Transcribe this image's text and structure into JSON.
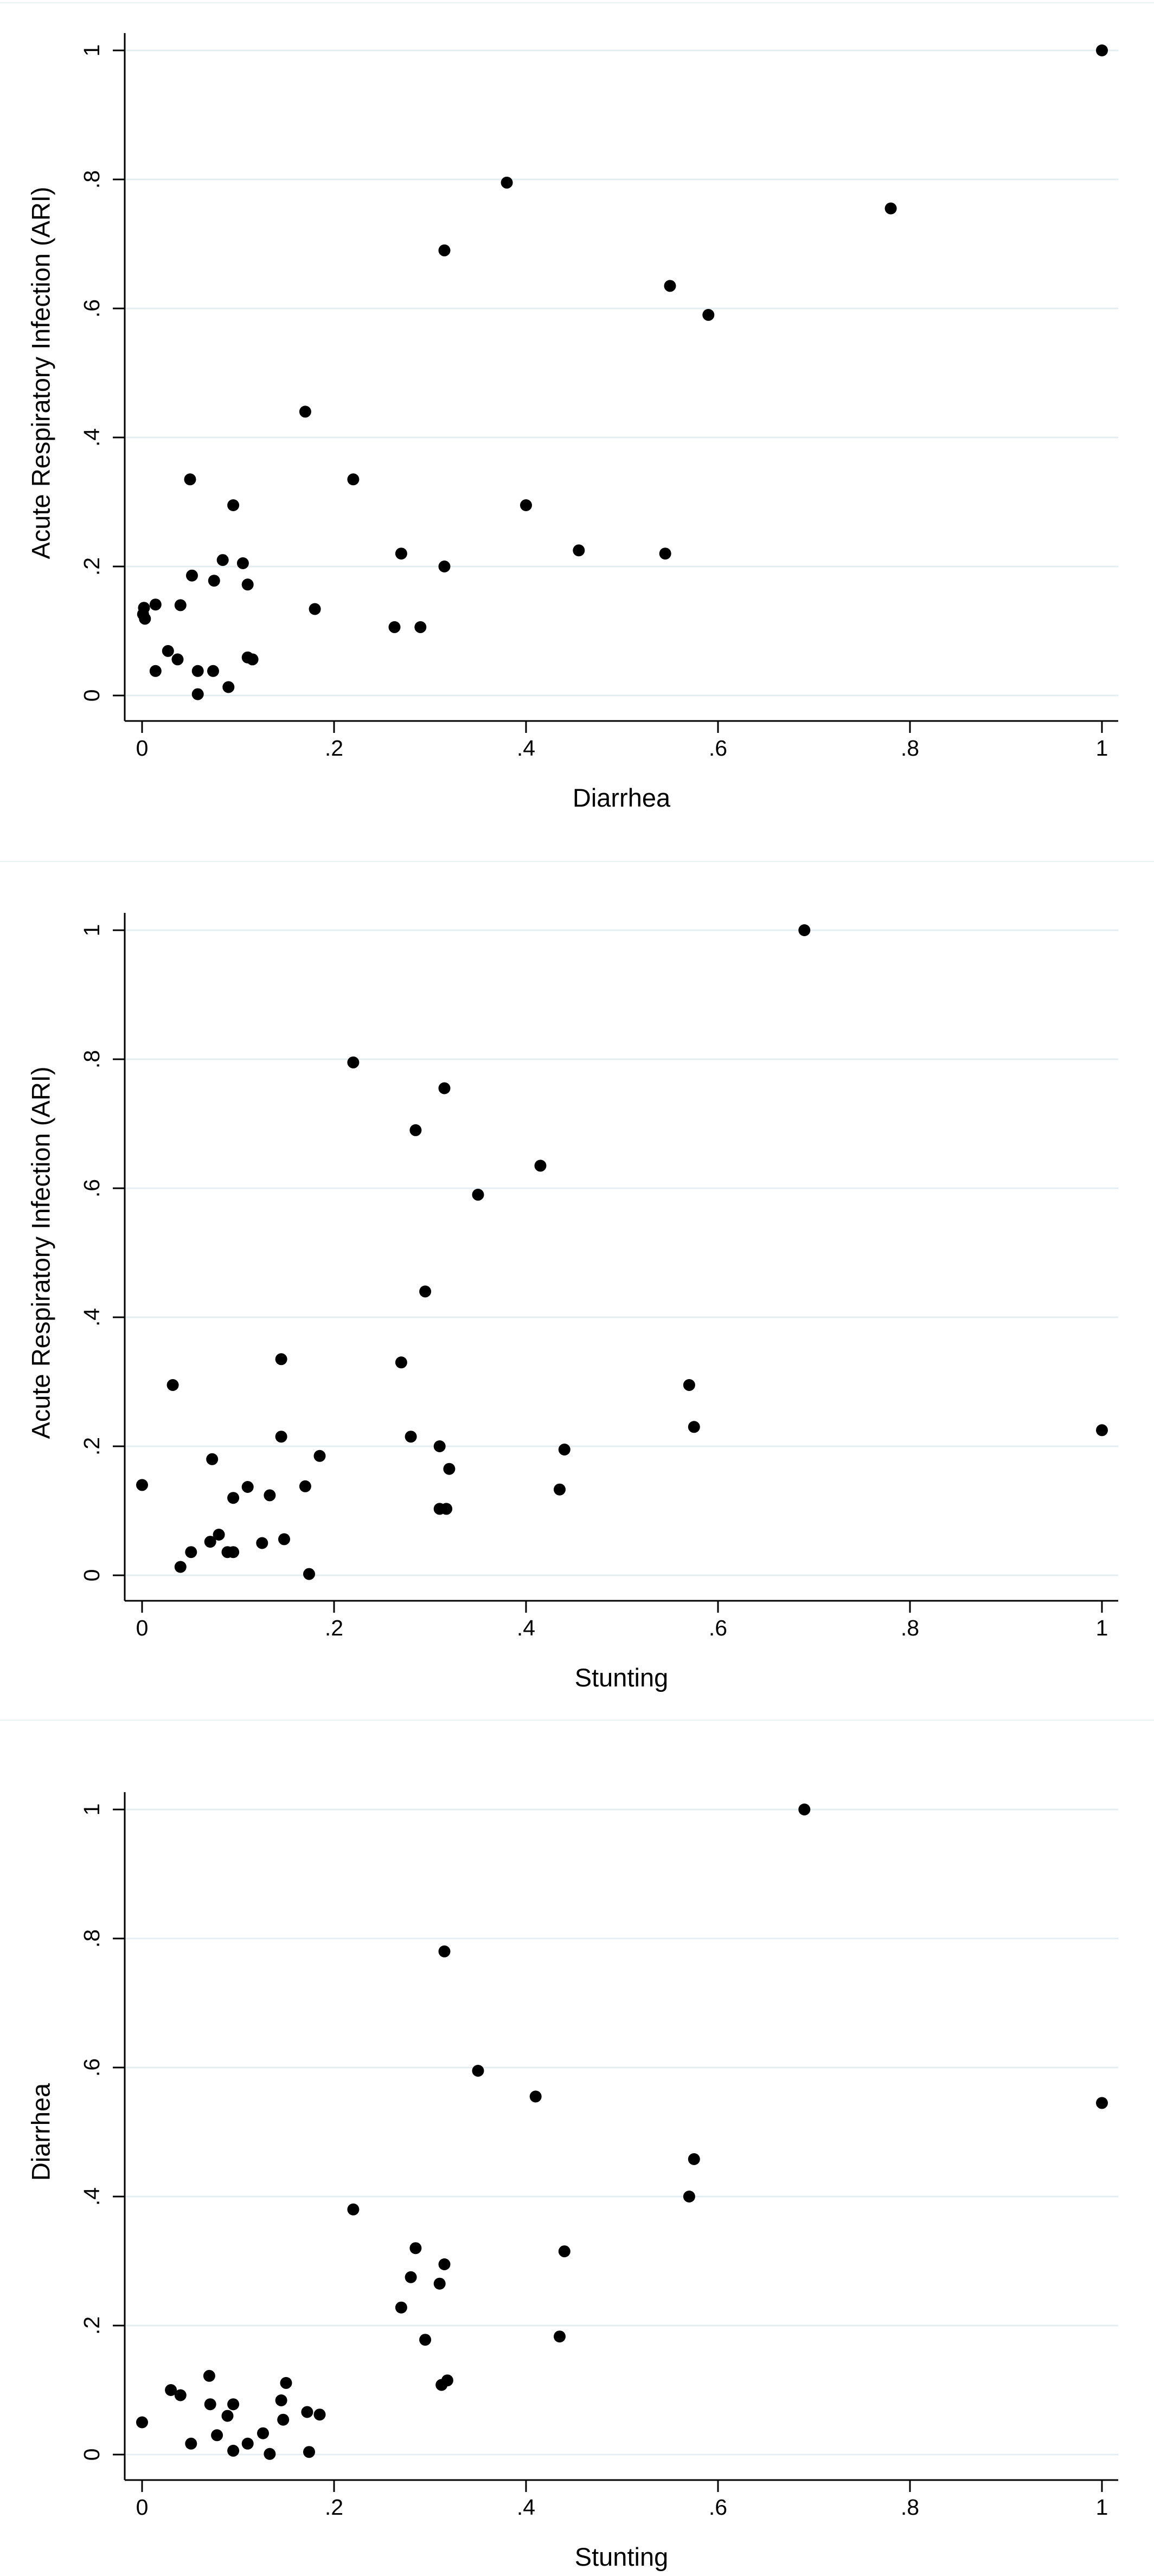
{
  "page": {
    "background": "#ffffff",
    "description": "Three stacked scatter plots of pairwise relationships between child health indicators"
  },
  "colors": {
    "background": "#ffffff",
    "axis": "#000000",
    "tick_label": "#000000",
    "title": "#000000",
    "gridline": "#e4edf0",
    "panel_top_border": "#edf3f5",
    "marker": "#000000"
  },
  "chart_data": [
    {
      "type": "scatter",
      "title": "",
      "xlabel": "Diarrhea",
      "ylabel": "Acute Respiratory Infection (ARI)",
      "xlim": [
        0,
        1
      ],
      "ylim": [
        0,
        1
      ],
      "xticks": [
        0,
        0.2,
        0.4,
        0.6,
        0.8,
        1
      ],
      "yticks": [
        0,
        0.2,
        0.4,
        0.6,
        0.8,
        1
      ],
      "xtick_labels": [
        "0",
        ".2",
        ".4",
        ".6",
        ".8",
        "1"
      ],
      "ytick_labels": [
        "0",
        ".2",
        ".4",
        ".6",
        ".8",
        "1"
      ],
      "grid": "horizontal-only",
      "legend_position": "none",
      "marker": {
        "shape": "circle",
        "color": "#000000"
      },
      "points": [
        [
          1.0,
          1.0
        ],
        [
          0.78,
          0.755
        ],
        [
          0.38,
          0.795
        ],
        [
          0.315,
          0.69
        ],
        [
          0.55,
          0.635
        ],
        [
          0.59,
          0.59
        ],
        [
          0.17,
          0.44
        ],
        [
          0.05,
          0.335
        ],
        [
          0.22,
          0.335
        ],
        [
          0.095,
          0.295
        ],
        [
          0.4,
          0.295
        ],
        [
          0.455,
          0.225
        ],
        [
          0.545,
          0.22
        ],
        [
          0.27,
          0.22
        ],
        [
          0.084,
          0.21
        ],
        [
          0.105,
          0.205
        ],
        [
          0.315,
          0.2
        ],
        [
          0.052,
          0.186
        ],
        [
          0.075,
          0.178
        ],
        [
          0.11,
          0.172
        ],
        [
          0.014,
          0.141
        ],
        [
          0.002,
          0.136
        ],
        [
          0.04,
          0.14
        ],
        [
          0.001,
          0.126
        ],
        [
          0.003,
          0.119
        ],
        [
          0.18,
          0.134
        ],
        [
          0.263,
          0.106
        ],
        [
          0.29,
          0.106
        ],
        [
          0.027,
          0.069
        ],
        [
          0.037,
          0.056
        ],
        [
          0.11,
          0.059
        ],
        [
          0.115,
          0.056
        ],
        [
          0.014,
          0.038
        ],
        [
          0.058,
          0.038
        ],
        [
          0.074,
          0.038
        ],
        [
          0.09,
          0.013
        ],
        [
          0.058,
          0.002
        ]
      ]
    },
    {
      "type": "scatter",
      "title": "",
      "xlabel": "Stunting",
      "ylabel": "Acute Respiratory Infection (ARI)",
      "xlim": [
        0,
        1
      ],
      "ylim": [
        0,
        1
      ],
      "xticks": [
        0,
        0.2,
        0.4,
        0.6,
        0.8,
        1
      ],
      "yticks": [
        0,
        0.2,
        0.4,
        0.6,
        0.8,
        1
      ],
      "xtick_labels": [
        "0",
        ".2",
        ".4",
        ".6",
        ".8",
        "1"
      ],
      "ytick_labels": [
        "0",
        ".2",
        ".4",
        ".6",
        ".8",
        "1"
      ],
      "grid": "horizontal-only",
      "legend_position": "none",
      "marker": {
        "shape": "circle",
        "color": "#000000"
      },
      "points": [
        [
          0.69,
          1.0
        ],
        [
          0.22,
          0.795
        ],
        [
          0.315,
          0.755
        ],
        [
          0.285,
          0.69
        ],
        [
          0.415,
          0.635
        ],
        [
          0.35,
          0.59
        ],
        [
          0.295,
          0.44
        ],
        [
          0.145,
          0.335
        ],
        [
          0.27,
          0.33
        ],
        [
          0.032,
          0.295
        ],
        [
          0.57,
          0.295
        ],
        [
          0.575,
          0.23
        ],
        [
          1.0,
          0.225
        ],
        [
          0.28,
          0.215
        ],
        [
          0.145,
          0.215
        ],
        [
          0.31,
          0.2
        ],
        [
          0.44,
          0.195
        ],
        [
          0.185,
          0.185
        ],
        [
          0.073,
          0.18
        ],
        [
          0.32,
          0.165
        ],
        [
          0.0,
          0.14
        ],
        [
          0.17,
          0.138
        ],
        [
          0.11,
          0.137
        ],
        [
          0.435,
          0.133
        ],
        [
          0.133,
          0.124
        ],
        [
          0.095,
          0.12
        ],
        [
          0.31,
          0.103
        ],
        [
          0.317,
          0.103
        ],
        [
          0.08,
          0.063
        ],
        [
          0.148,
          0.056
        ],
        [
          0.071,
          0.052
        ],
        [
          0.125,
          0.05
        ],
        [
          0.051,
          0.036
        ],
        [
          0.089,
          0.036
        ],
        [
          0.095,
          0.036
        ],
        [
          0.04,
          0.013
        ],
        [
          0.174,
          0.002
        ]
      ]
    },
    {
      "type": "scatter",
      "title": "",
      "xlabel": "Stunting",
      "ylabel": "Diarrhea",
      "xlim": [
        0,
        1
      ],
      "ylim": [
        0,
        1
      ],
      "xticks": [
        0,
        0.2,
        0.4,
        0.6,
        0.8,
        1
      ],
      "yticks": [
        0,
        0.2,
        0.4,
        0.6,
        0.8,
        1
      ],
      "xtick_labels": [
        "0",
        ".2",
        ".4",
        ".6",
        ".8",
        "1"
      ],
      "ytick_labels": [
        "0",
        ".2",
        ".4",
        ".6",
        ".8",
        "1"
      ],
      "grid": "horizontal-only",
      "legend_position": "none",
      "marker": {
        "shape": "circle",
        "color": "#000000"
      },
      "points": [
        [
          0.69,
          1.0
        ],
        [
          0.315,
          0.78
        ],
        [
          0.35,
          0.595
        ],
        [
          0.41,
          0.555
        ],
        [
          1.0,
          0.545
        ],
        [
          0.575,
          0.458
        ],
        [
          0.57,
          0.4
        ],
        [
          0.22,
          0.38
        ],
        [
          0.285,
          0.32
        ],
        [
          0.44,
          0.315
        ],
        [
          0.315,
          0.295
        ],
        [
          0.28,
          0.275
        ],
        [
          0.31,
          0.265
        ],
        [
          0.27,
          0.228
        ],
        [
          0.435,
          0.183
        ],
        [
          0.295,
          0.178
        ],
        [
          0.318,
          0.115
        ],
        [
          0.312,
          0.108
        ],
        [
          0.15,
          0.111
        ],
        [
          0.07,
          0.122
        ],
        [
          0.03,
          0.1
        ],
        [
          0.04,
          0.092
        ],
        [
          0.145,
          0.084
        ],
        [
          0.071,
          0.078
        ],
        [
          0.095,
          0.078
        ],
        [
          0.089,
          0.06
        ],
        [
          0.172,
          0.066
        ],
        [
          0.185,
          0.062
        ],
        [
          0.147,
          0.054
        ],
        [
          0.0,
          0.05
        ],
        [
          0.078,
          0.03
        ],
        [
          0.126,
          0.033
        ],
        [
          0.051,
          0.017
        ],
        [
          0.11,
          0.017
        ],
        [
          0.095,
          0.006
        ],
        [
          0.133,
          0.001
        ],
        [
          0.174,
          0.004
        ]
      ]
    }
  ]
}
